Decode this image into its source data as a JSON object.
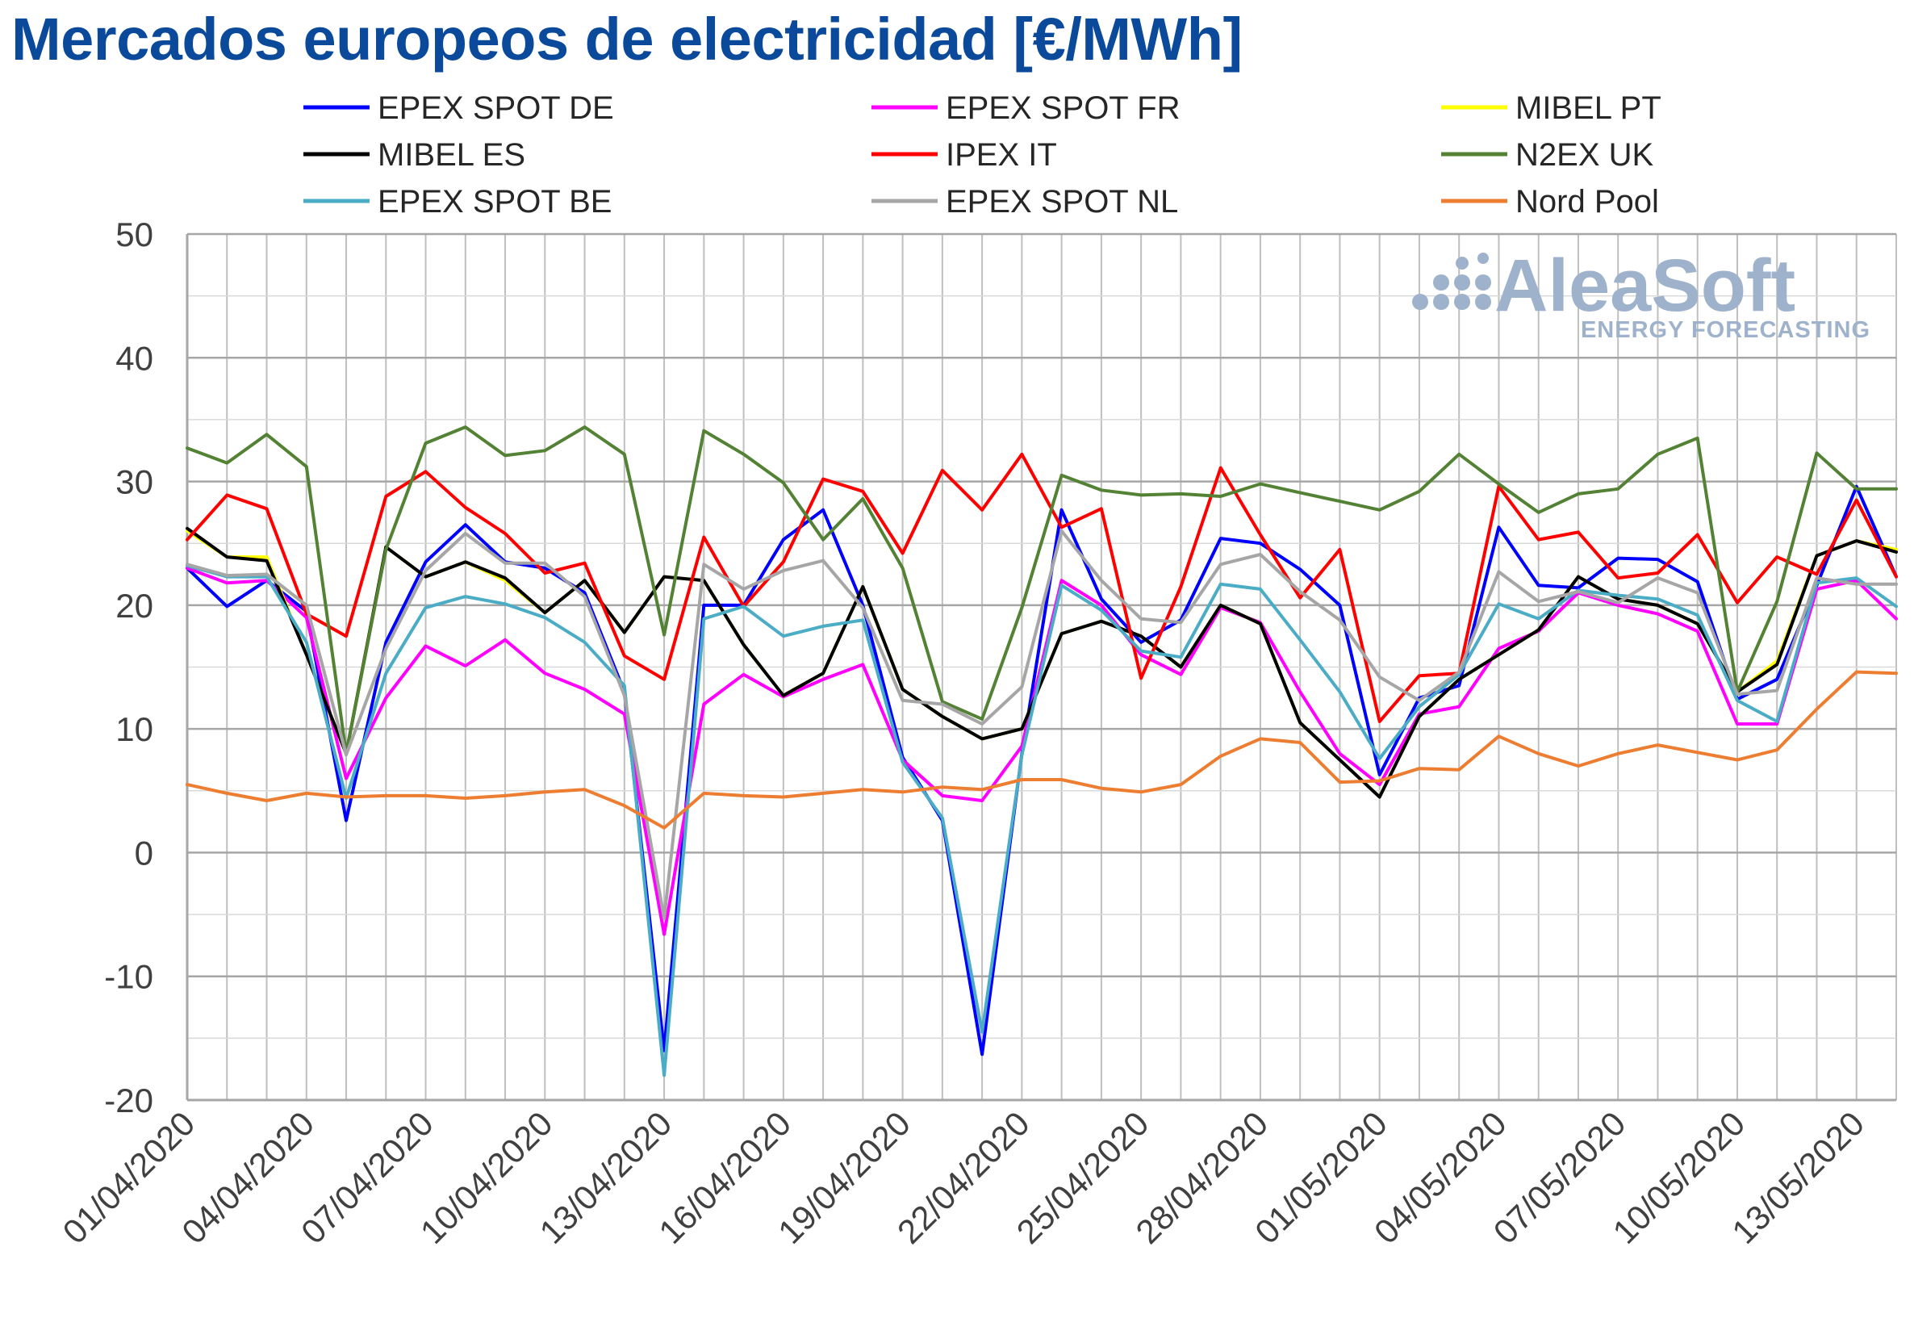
{
  "chart_data": {
    "type": "line",
    "title": "Mercados europeos de electricidad [€/MWh]",
    "xlabel": "",
    "ylabel": "",
    "ylim": [
      -20,
      50
    ],
    "y_ticks": [
      -20,
      -10,
      0,
      10,
      20,
      30,
      40,
      50
    ],
    "x_start": "01/04/2020",
    "x_tick_labels": [
      "01/04/2020",
      "04/04/2020",
      "07/04/2020",
      "10/04/2020",
      "13/04/2020",
      "16/04/2020",
      "19/04/2020",
      "22/04/2020",
      "25/04/2020",
      "28/04/2020",
      "01/05/2020",
      "04/05/2020",
      "07/05/2020",
      "10/05/2020",
      "13/05/2020"
    ],
    "grid": true,
    "legend_position": "top",
    "watermark": {
      "main": "AleaSoft",
      "sub": "ENERGY FORECASTING"
    },
    "series": [
      {
        "name": "EPEX SPOT DE",
        "color": "#0000ff",
        "values": [
          23.0,
          19.9,
          22.0,
          19.5,
          2.6,
          17.0,
          23.5,
          26.5,
          23.5,
          23.0,
          21.0,
          13.0,
          -16.0,
          20.0,
          20.0,
          25.3,
          27.7,
          20.0,
          7.7,
          2.6,
          -16.3,
          8.0,
          27.7,
          20.5,
          17.0,
          18.8,
          25.4,
          25.0,
          22.9,
          20.0,
          6.3,
          12.5,
          13.5,
          26.3,
          21.6,
          21.4,
          23.8,
          23.7,
          21.9,
          12.4,
          14.0,
          21.6,
          29.6,
          22.3
        ]
      },
      {
        "name": "EPEX SPOT FR",
        "color": "#ff00ff",
        "values": [
          23.0,
          21.8,
          22.0,
          19.0,
          6.0,
          12.5,
          16.7,
          15.1,
          17.2,
          14.5,
          13.2,
          11.2,
          -6.6,
          12.0,
          14.4,
          12.6,
          14.0,
          15.2,
          7.5,
          4.6,
          4.2,
          8.6,
          22.0,
          20.0,
          16.0,
          14.4,
          19.8,
          18.6,
          13.0,
          8.0,
          5.5,
          11.2,
          11.8,
          16.5,
          17.9,
          21.0,
          20.0,
          19.3,
          17.9,
          10.4,
          10.4,
          21.3,
          22.0,
          18.9
        ]
      },
      {
        "name": "MIBEL PT",
        "color": "#ffff00",
        "values": [
          26.0,
          23.9,
          23.9,
          16.0,
          8.0,
          24.7,
          22.3,
          23.5,
          22.0,
          19.4,
          22.0,
          17.8,
          22.3,
          22.0,
          16.8,
          12.7,
          14.5,
          21.5,
          13.2,
          11.0,
          9.2,
          10.0,
          17.7,
          18.7,
          17.5,
          15.0,
          20.0,
          18.5,
          10.5,
          7.5,
          4.5,
          11.0,
          14.0,
          16.0,
          18.0,
          22.3,
          20.5,
          20.0,
          18.5,
          13.0,
          15.5,
          24.0,
          25.2,
          24.5
        ]
      },
      {
        "name": "MIBEL ES",
        "color": "#000000",
        "values": [
          26.2,
          23.9,
          23.6,
          16.0,
          8.0,
          24.7,
          22.3,
          23.5,
          22.2,
          19.4,
          22.0,
          17.8,
          22.3,
          22.0,
          16.8,
          12.7,
          14.5,
          21.5,
          13.2,
          11.0,
          9.2,
          10.0,
          17.7,
          18.7,
          17.5,
          15.0,
          20.0,
          18.5,
          10.5,
          7.5,
          4.5,
          11.0,
          14.0,
          16.0,
          18.0,
          22.3,
          20.5,
          20.0,
          18.5,
          13.0,
          15.2,
          24.0,
          25.2,
          24.3
        ]
      },
      {
        "name": "IPEX IT",
        "color": "#ff0000",
        "values": [
          25.3,
          28.9,
          27.8,
          19.3,
          17.5,
          28.8,
          30.8,
          27.9,
          25.8,
          22.6,
          23.4,
          15.9,
          14.0,
          25.5,
          19.9,
          23.5,
          30.2,
          29.2,
          24.2,
          30.9,
          27.7,
          32.2,
          26.3,
          27.8,
          14.1,
          21.5,
          31.1,
          25.7,
          20.6,
          24.5,
          10.6,
          14.3,
          14.5,
          29.6,
          25.3,
          25.9,
          22.2,
          22.6,
          25.7,
          20.2,
          23.9,
          22.5,
          28.5,
          22.3
        ]
      },
      {
        "name": "N2EX UK",
        "color": "#548235",
        "values": [
          32.7,
          31.5,
          33.8,
          31.2,
          8.0,
          24.5,
          33.1,
          34.4,
          32.1,
          32.5,
          34.4,
          32.2,
          17.6,
          34.1,
          32.2,
          29.9,
          25.3,
          28.6,
          23.0,
          12.2,
          10.8,
          19.8,
          30.5,
          29.3,
          28.9,
          29.0,
          28.8,
          29.8,
          29.1,
          28.4,
          27.7,
          29.2,
          32.2,
          29.8,
          27.5,
          29.0,
          29.4,
          32.2,
          33.5,
          13.0,
          20.3,
          32.3,
          29.4,
          29.4
        ]
      },
      {
        "name": "EPEX SPOT BE",
        "color": "#4bacc6",
        "values": [
          23.2,
          22.3,
          22.3,
          17.0,
          4.4,
          14.5,
          19.8,
          20.7,
          20.1,
          19.0,
          17.0,
          13.5,
          -18.0,
          18.9,
          19.9,
          17.5,
          18.3,
          18.8,
          7.3,
          2.8,
          -14.5,
          7.9,
          21.6,
          19.6,
          16.3,
          15.8,
          21.7,
          21.3,
          17.2,
          13.0,
          7.6,
          11.8,
          14.4,
          20.1,
          18.9,
          21.2,
          20.8,
          20.5,
          19.2,
          12.3,
          10.6,
          21.8,
          22.2,
          19.9
        ]
      },
      {
        "name": "EPEX SPOT NL",
        "color": "#a6a6a6",
        "values": [
          23.3,
          22.4,
          22.5,
          20.0,
          7.9,
          16.5,
          22.8,
          25.8,
          23.4,
          23.4,
          20.7,
          12.7,
          -5.3,
          23.3,
          21.3,
          22.8,
          23.6,
          19.8,
          12.3,
          12.0,
          10.4,
          13.4,
          26.0,
          22.0,
          18.9,
          18.6,
          23.3,
          24.1,
          21.1,
          18.8,
          14.2,
          12.3,
          14.6,
          22.7,
          20.3,
          21.1,
          20.2,
          22.2,
          21.0,
          12.8,
          13.1,
          22.2,
          21.7,
          21.7
        ]
      },
      {
        "name": "Nord Pool",
        "color": "#ed7d31",
        "values": [
          5.5,
          4.8,
          4.2,
          4.8,
          4.5,
          4.6,
          4.6,
          4.4,
          4.6,
          4.9,
          5.1,
          3.8,
          2.0,
          4.8,
          4.6,
          4.5,
          4.8,
          5.1,
          4.9,
          5.3,
          5.1,
          5.9,
          5.9,
          5.2,
          4.9,
          5.5,
          7.8,
          9.2,
          8.9,
          5.7,
          5.8,
          6.8,
          6.7,
          9.4,
          8.0,
          7.0,
          8.0,
          8.7,
          8.1,
          7.5,
          8.3,
          11.6,
          14.6,
          14.5
        ]
      }
    ]
  }
}
